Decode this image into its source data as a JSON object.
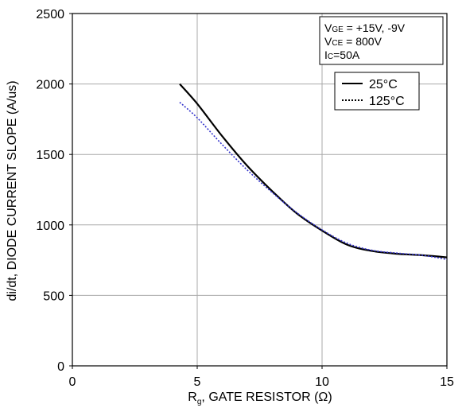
{
  "chart_data": {
    "type": "line",
    "xlabel": {
      "main": "R",
      "sub": "g",
      "rest": ", GATE RESISTOR (Ω)"
    },
    "ylabel": "di/dt, DIODE CURRENT SLOPE (A/us)",
    "xlim": [
      0,
      15
    ],
    "ylim": [
      0,
      2500
    ],
    "xticks": [
      "0",
      "5",
      "10",
      "15"
    ],
    "yticks": [
      "0",
      "500",
      "1000",
      "1500",
      "2000",
      "2500"
    ],
    "grid": true,
    "conditions": [
      {
        "main": "V",
        "sub": "GE",
        "rest": " = +15V, -9V"
      },
      {
        "main": "V",
        "sub": "CE",
        "rest": " = 800V"
      },
      {
        "main": "I",
        "sub": "C",
        "rest": "=50A"
      }
    ],
    "legend_position": "top-right",
    "series": [
      {
        "name": "25°C",
        "style": "solid",
        "color": "#000000",
        "x": [
          4.3,
          5,
          6,
          7,
          8,
          9,
          10,
          11,
          12,
          13,
          14,
          15
        ],
        "y": [
          2000,
          1860,
          1630,
          1420,
          1240,
          1080,
          960,
          860,
          815,
          795,
          785,
          770
        ]
      },
      {
        "name": "125°C",
        "style": "dotted",
        "color": "#3333cc",
        "x": [
          4.3,
          5,
          6,
          7,
          8,
          9,
          10,
          11,
          12,
          13,
          14,
          15
        ],
        "y": [
          1870,
          1760,
          1570,
          1390,
          1230,
          1085,
          965,
          870,
          820,
          800,
          785,
          755
        ]
      }
    ]
  }
}
